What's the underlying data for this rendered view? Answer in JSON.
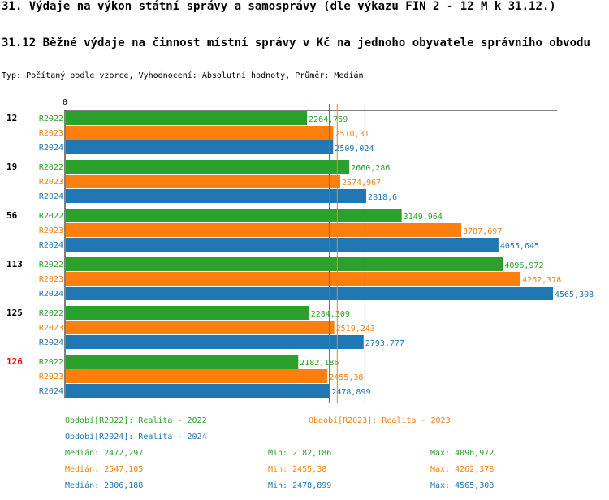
{
  "header": {
    "title": "31. Výdaje na výkon státní správy a samosprávy (dle výkazu FIN 2 - 12 M k 31.12.)",
    "subtitle": "31.12 Běžné výdaje na činnost místní správy v Kč na jednoho obyvatele správního obvodu",
    "type_line": "Typ: Počítaný podle vzorce, Vyhodnocení: Absolutní hodnoty, Průměr: Medián"
  },
  "colors": {
    "R2022": "#2ca02c",
    "R2023": "#ff7f0e",
    "R2024": "#1f77b4",
    "highlight": "#ff0000"
  },
  "chart_data": {
    "type": "bar",
    "orientation": "horizontal",
    "axis_zero_label": "0",
    "xlim": [
      0,
      4565.308
    ],
    "categories": [
      "12",
      "19",
      "56",
      "113",
      "125",
      "126"
    ],
    "highlight_category": "126",
    "series": [
      {
        "name": "R2022",
        "values": [
          2264.759,
          2660.286,
          3149.964,
          4096.972,
          2284.309,
          2182.186
        ],
        "labels": [
          "2264,759",
          "2660,286",
          "3149,964",
          "4096,972",
          "2284,309",
          "2182,186"
        ]
      },
      {
        "name": "R2023",
        "values": [
          2510.31,
          2574.967,
          3707.697,
          4262.378,
          2519.243,
          2455.38
        ],
        "labels": [
          "2510,31",
          "2574,967",
          "3707,697",
          "4262,378",
          "2519,243",
          "2455,38"
        ]
      },
      {
        "name": "R2024",
        "values": [
          2509.024,
          2818.6,
          4055.645,
          4565.308,
          2793.777,
          2478.899
        ],
        "labels": [
          "2509,024",
          "2818,6",
          "4055,645",
          "4565,308",
          "2793,777",
          "2478,899"
        ]
      }
    ],
    "medians": {
      "R2022": 2472.297,
      "R2023": 2547.105,
      "R2024": 2806.188
    }
  },
  "legend": {
    "period_2022": "Období[R2022]: Realita - 2022",
    "period_2023": "Období[R2023]: Realita - 2023",
    "period_2024": "Období[R2024]: Realita - 2024"
  },
  "stats": {
    "r2022": {
      "median": "Medián: 2472,297",
      "min": "Min: 2182,186",
      "max": "Max: 4096,972"
    },
    "r2023": {
      "median": "Medián: 2547,105",
      "min": "Min: 2455,38",
      "max": "Max: 4262,378"
    },
    "r2024": {
      "median": "Medián: 2806,188",
      "min": "Min: 2478,899",
      "max": "Max: 4565,308"
    }
  }
}
